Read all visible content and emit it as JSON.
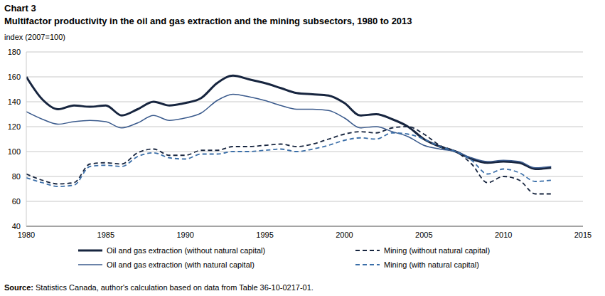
{
  "chart_data": {
    "type": "line",
    "label": "Chart 3",
    "title": "Multifactor productivity in the oil and gas extraction and the mining subsectors, 1980 to 2013",
    "y_label": "index (2007=100)",
    "source_label": "Source:",
    "source": "Statistics Canada, author's calculation based on data from Table 36-10-0217-01.",
    "x": [
      1980,
      1981,
      1982,
      1983,
      1984,
      1985,
      1986,
      1987,
      1988,
      1989,
      1990,
      1991,
      1992,
      1993,
      1994,
      1995,
      1996,
      1997,
      1998,
      1999,
      2000,
      2001,
      2002,
      2003,
      2004,
      2005,
      2006,
      2007,
      2008,
      2009,
      2010,
      2011,
      2012,
      2013
    ],
    "xlim": [
      1980,
      2015
    ],
    "xticks": [
      1980,
      1985,
      1990,
      1995,
      2000,
      2005,
      2010,
      2015
    ],
    "ylim": [
      40,
      180
    ],
    "yticks": [
      40,
      60,
      80,
      100,
      120,
      140,
      160,
      180
    ],
    "grid": true,
    "legend": "bottom",
    "series": [
      {
        "name": "Oil and gas extraction (without natural capital)",
        "color": "#17253f",
        "line_style": "solid",
        "values": [
          160,
          142,
          134,
          137,
          136,
          137,
          129,
          134,
          140,
          137,
          139,
          143,
          155,
          161,
          158,
          155,
          151,
          147,
          146,
          145,
          139,
          129,
          130,
          126,
          120,
          110,
          104,
          100,
          94,
          91,
          92,
          91,
          86,
          87
        ]
      },
      {
        "name": "Mining (without natural capital)",
        "color": "#17253f",
        "line_style": "dashed",
        "values": [
          82,
          77,
          74,
          75,
          90,
          91,
          90,
          99,
          102,
          97,
          97,
          101,
          101,
          104,
          104,
          105,
          106,
          104,
          106,
          110,
          114,
          116,
          115,
          119,
          120,
          114,
          105,
          100,
          90,
          75,
          80,
          77,
          66,
          66
        ]
      },
      {
        "name": "Oil and gas extraction (with natural capital)",
        "color": "#3a5a8c",
        "line_style": "solid",
        "values": [
          132,
          126,
          122,
          124,
          125,
          124,
          119,
          123,
          129,
          125,
          127,
          131,
          141,
          146,
          144,
          141,
          137,
          134,
          134,
          133,
          127,
          119,
          120,
          116,
          112,
          105,
          102,
          100,
          95,
          92,
          93,
          92,
          87,
          88
        ]
      },
      {
        "name": "Mining (with natural capital)",
        "color": "#3a6ea8",
        "line_style": "dashed",
        "values": [
          79,
          75,
          72,
          73,
          88,
          89,
          88,
          96,
          99,
          95,
          94,
          98,
          98,
          100,
          100,
          101,
          102,
          100,
          102,
          105,
          109,
          111,
          110,
          115,
          114,
          110,
          104,
          100,
          93,
          82,
          86,
          83,
          76,
          77
        ]
      }
    ]
  }
}
